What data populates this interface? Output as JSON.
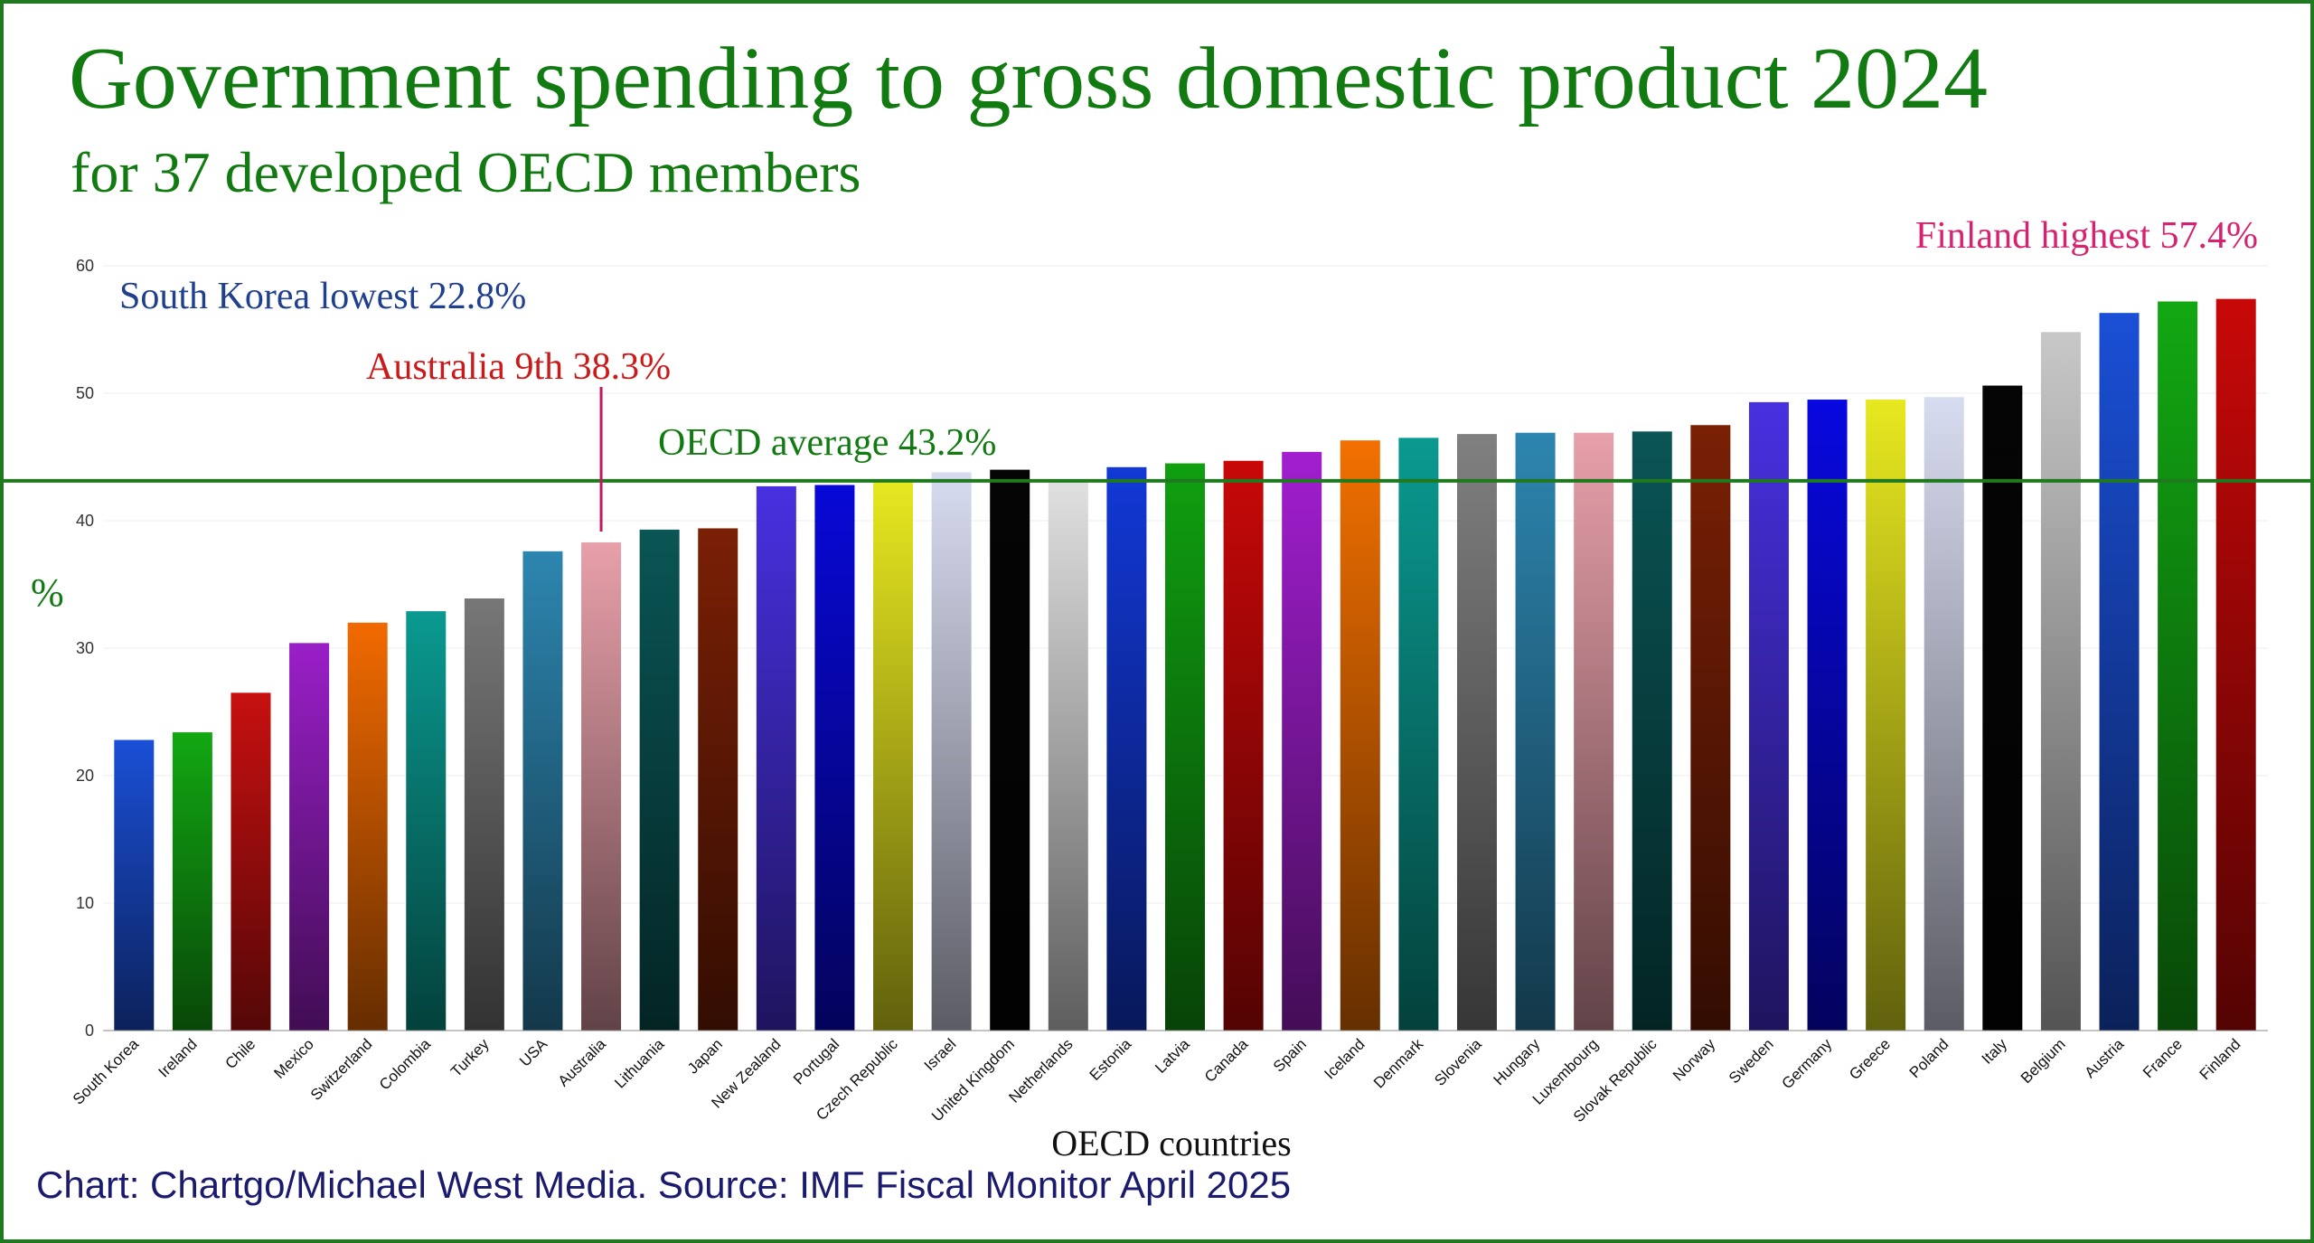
{
  "title": "Government spending to gross domestic product 2024",
  "subtitle": "for 37 developed OECD members",
  "source": "Chart: Chartgo/Michael West Media. Source: IMF Fiscal Monitor April 2025",
  "colors": {
    "title": "#117a11",
    "source": "#1a1a6e",
    "average_line": "#1f7a1f",
    "lowest_note": "#1f3f8f",
    "highest_note": "#d6236f",
    "australia_note": "#cc1a1a",
    "australia_marker": "#c2185b"
  },
  "chart_data": {
    "type": "bar",
    "title": "Government spending to gross domestic product 2024",
    "xlabel": "OECD countries",
    "ylabel": "%",
    "ylim": [
      0,
      60
    ],
    "yticks": [
      0,
      10,
      20,
      30,
      40,
      50,
      60
    ],
    "grid": true,
    "categories": [
      "South Korea",
      "Ireland",
      "Chile",
      "Mexico",
      "Switzerland",
      "Colombia",
      "Turkey",
      "USA",
      "Australia",
      "Lithuania",
      "Japan",
      "New Zealand",
      "Portugal",
      "Czech Republic",
      "Israel",
      "United Kingdom",
      "Netherlands",
      "Estonia",
      "Latvia",
      "Canada",
      "Spain",
      "Iceland",
      "Denmark",
      "Slovenia",
      "Hungary",
      "Luxembourg",
      "Slovak Republic",
      "Norway",
      "Sweden",
      "Germany",
      "Greece",
      "Poland",
      "Italy",
      "Belgium",
      "Austria",
      "France",
      "Finland"
    ],
    "values": [
      22.8,
      23.4,
      26.5,
      30.4,
      32.0,
      32.9,
      33.9,
      37.6,
      38.3,
      39.3,
      39.4,
      42.7,
      42.8,
      43.2,
      43.8,
      44.0,
      43.1,
      44.2,
      44.5,
      44.7,
      45.4,
      46.3,
      46.5,
      46.8,
      46.9,
      46.9,
      47.0,
      47.5,
      49.3,
      49.5,
      49.5,
      49.7,
      50.6,
      54.8,
      56.3,
      57.2,
      57.4
    ],
    "bar_colors": [
      "#1a4fd6",
      "#12a812",
      "#c81010",
      "#9a1fc8",
      "#f26a00",
      "#0a9a90",
      "#777777",
      "#2d86b0",
      "#e8a0aa",
      "#0a5555",
      "#7a2005",
      "#4830e0",
      "#0808d8",
      "#e8e820",
      "#d8dcf0",
      "#050505",
      "#e0e0e0",
      "#1238d6",
      "#10a010",
      "#c80808",
      "#a21ed0",
      "#f27000",
      "#0a9a90",
      "#808080",
      "#2d86b0",
      "#e8a0aa",
      "#0a5555",
      "#7a2005",
      "#4830e0",
      "#0808e0",
      "#e8e820",
      "#d8dcf0",
      "#050505",
      "#c8c8c8",
      "#1a4fd6",
      "#12a812",
      "#c80808"
    ],
    "average": 43.2,
    "average_label": "OECD average 43.2%",
    "annotations": {
      "lowest": "South Korea lowest 22.8%",
      "highest": "Finland highest 57.4%",
      "australia": "Australia 9th 38.3%"
    }
  }
}
